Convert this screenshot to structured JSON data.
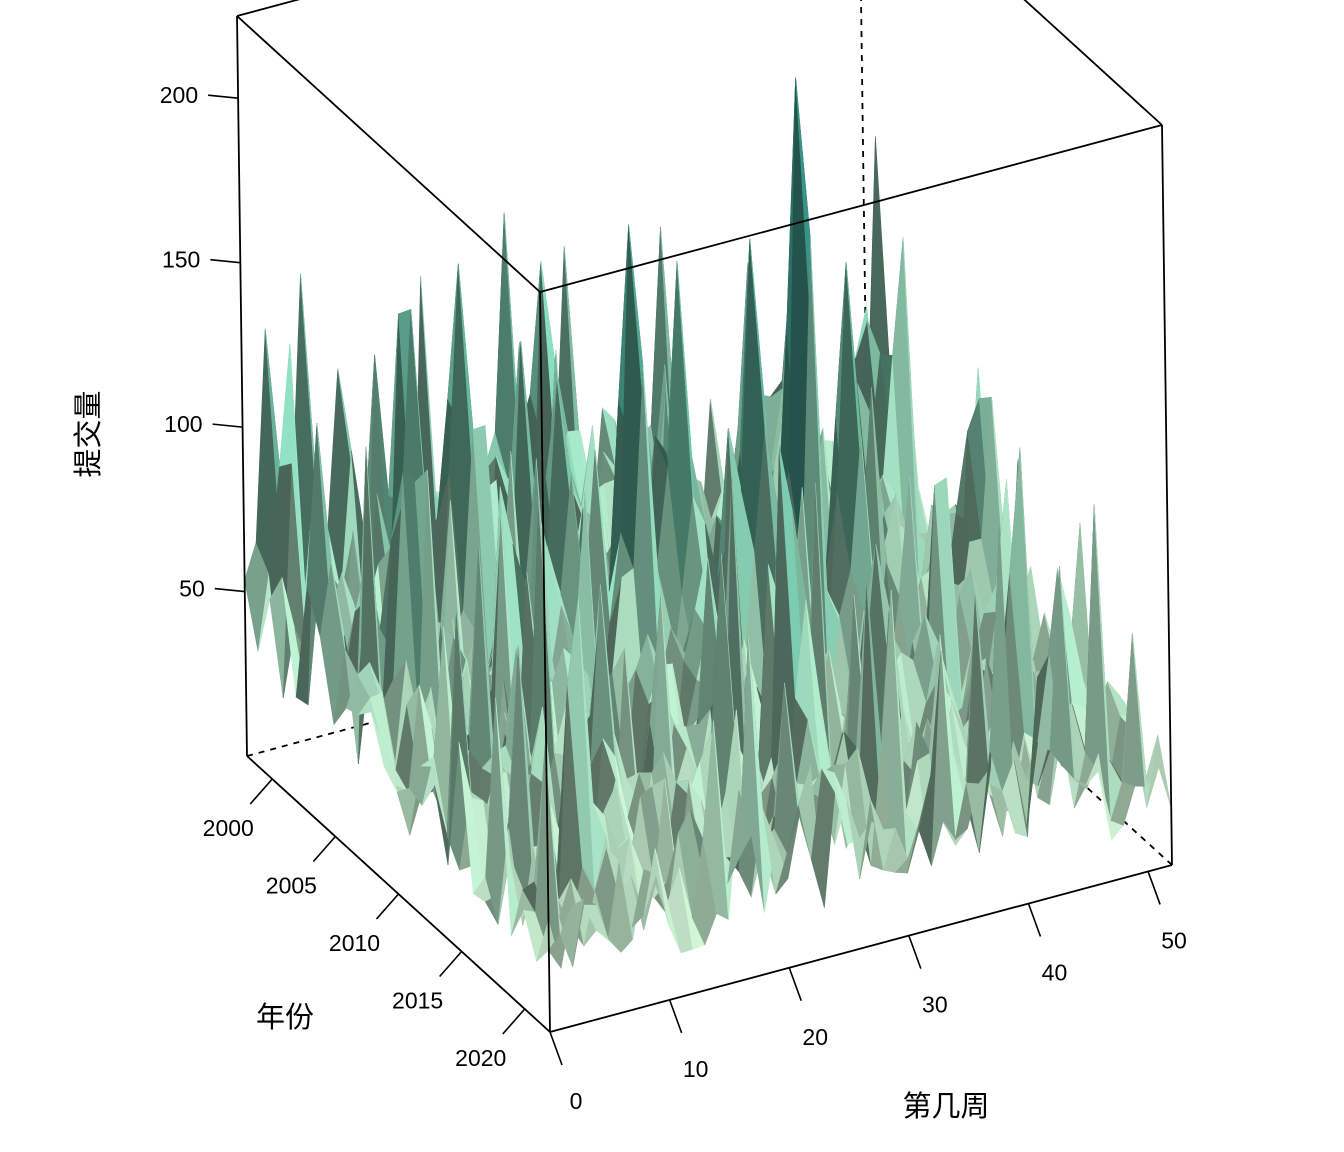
{
  "chart_data": {
    "type": "surface3d",
    "title": "",
    "xlabel": "第几周",
    "ylabel": "年份",
    "zlabel": "提交量",
    "x_ticks": [
      0,
      10,
      20,
      30,
      40,
      50
    ],
    "y_ticks": [
      2000,
      2005,
      2010,
      2015,
      2020
    ],
    "z_ticks": [
      50,
      100,
      150,
      200
    ],
    "xlim": [
      0,
      52
    ],
    "ylim": [
      1998,
      2022
    ],
    "zlim": [
      0,
      225
    ],
    "colors": {
      "low": "#dff5d6",
      "mid": "#7fd6b8",
      "high": "#008b8b",
      "edge": "#2f3a30"
    },
    "series": [
      {
        "year": 1998,
        "peaks": [
          {
            "week": 2,
            "value": 128
          },
          {
            "week": 5,
            "value": 130
          },
          {
            "week": 8,
            "value": 110
          }
        ]
      },
      {
        "year": 2002,
        "peaks": [
          {
            "week": 10,
            "value": 140
          },
          {
            "week": 14,
            "value": 150
          }
        ]
      },
      {
        "year": 2005,
        "peaks": [
          {
            "week": 16,
            "value": 135
          },
          {
            "week": 19,
            "value": 120
          }
        ]
      },
      {
        "year": 2008,
        "peaks": [
          {
            "week": 22,
            "value": 175
          },
          {
            "week": 26,
            "value": 160
          }
        ]
      },
      {
        "year": 2010,
        "peaks": [
          {
            "week": 30,
            "value": 170
          },
          {
            "week": 34,
            "value": 215
          },
          {
            "week": 38,
            "value": 155
          }
        ]
      },
      {
        "year": 2014,
        "peaks": [
          {
            "week": 40,
            "value": 60
          },
          {
            "week": 46,
            "value": 55
          }
        ]
      },
      {
        "year": 2018,
        "peaks": [
          {
            "week": 48,
            "value": 40
          },
          {
            "week": 52,
            "value": 25
          }
        ]
      }
    ]
  }
}
